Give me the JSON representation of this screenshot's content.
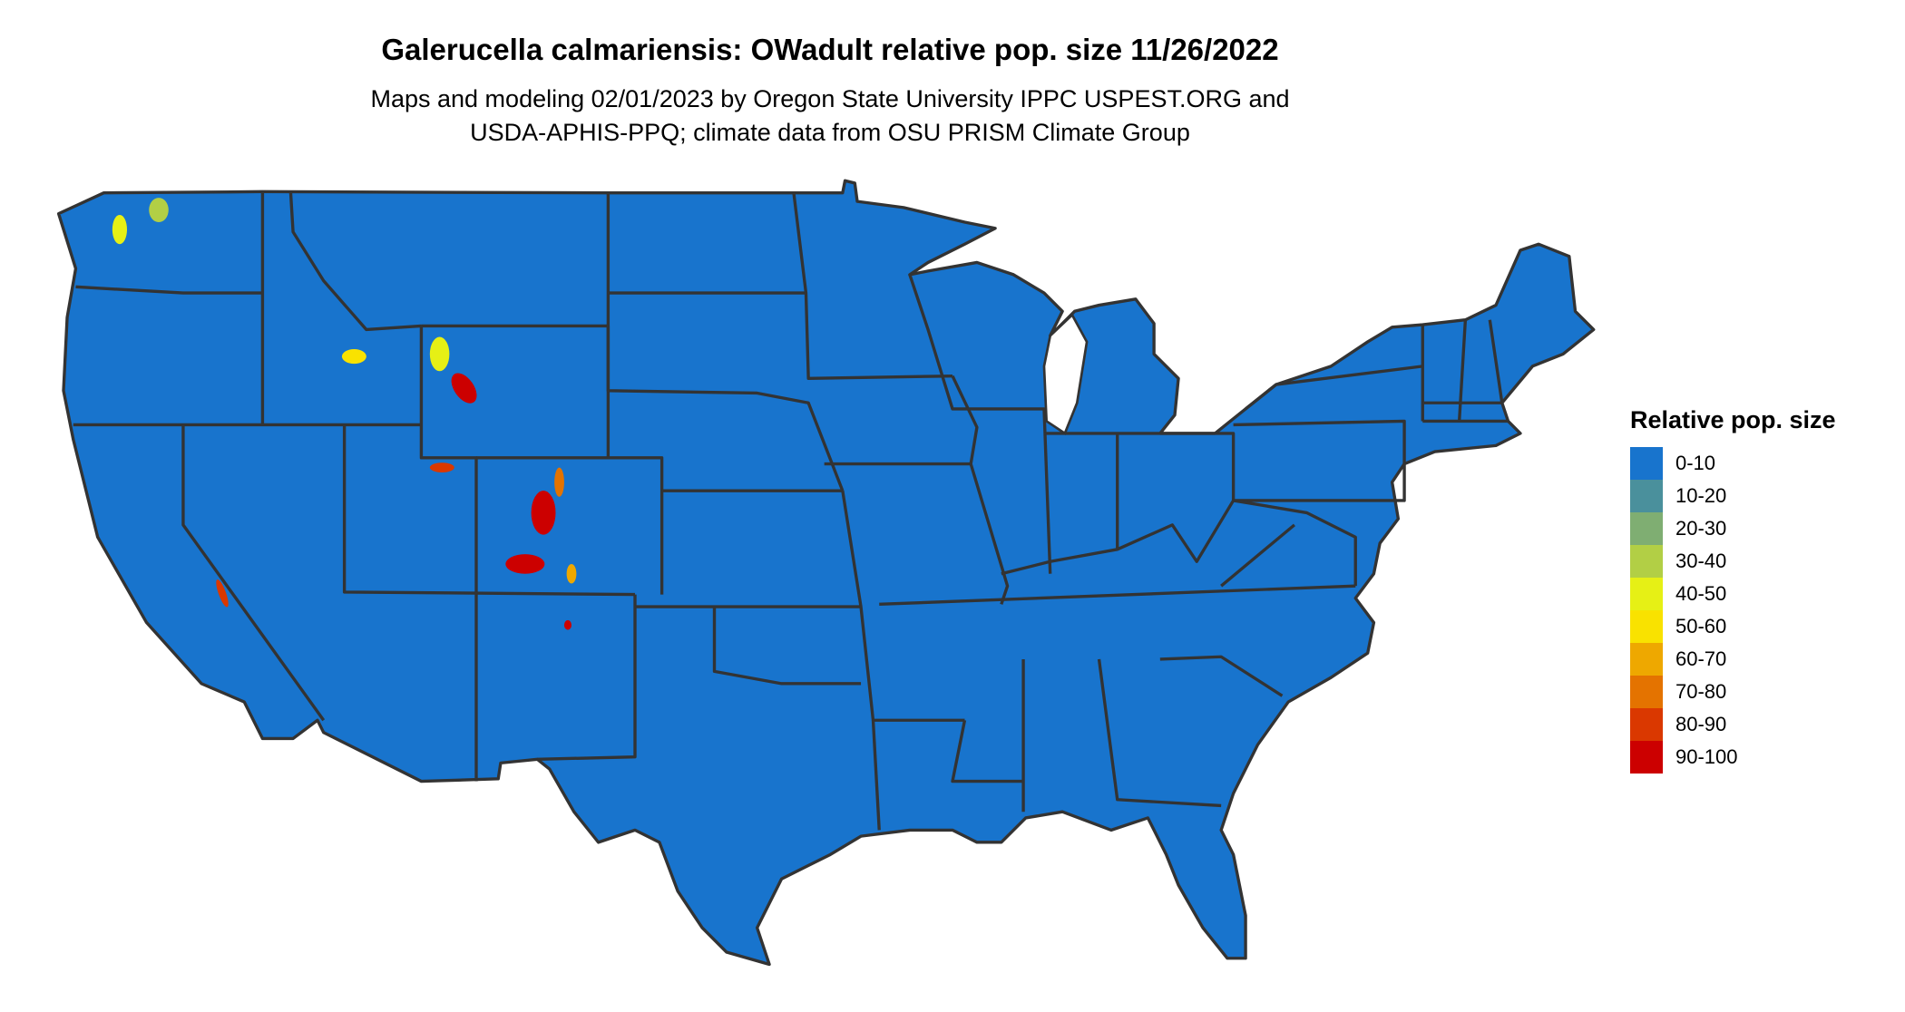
{
  "title": "Galerucella calmariensis: OWadult relative pop. size 11/26/2022",
  "subtitle_line1": "Maps and modeling 02/01/2023 by Oregon State University IPPC USPEST.ORG and",
  "subtitle_line2": "USDA-APHIS-PPQ; climate data from OSU PRISM Climate Group",
  "map": {
    "region": "Contiguous United States",
    "base_color": "#1874CD",
    "border_color": "#333333"
  },
  "legend": {
    "title": "Relative pop. size",
    "items": [
      {
        "label": "0-10",
        "color": "#1874CD"
      },
      {
        "label": "10-20",
        "color": "#4A909C"
      },
      {
        "label": "20-30",
        "color": "#7FAE72"
      },
      {
        "label": "30-40",
        "color": "#B2CF45"
      },
      {
        "label": "40-50",
        "color": "#E6F015"
      },
      {
        "label": "50-60",
        "color": "#F9E200"
      },
      {
        "label": "60-70",
        "color": "#EEA800"
      },
      {
        "label": "70-80",
        "color": "#E47300"
      },
      {
        "label": "80-90",
        "color": "#DA3800"
      },
      {
        "label": "90-100",
        "color": "#CC0000"
      }
    ]
  }
}
